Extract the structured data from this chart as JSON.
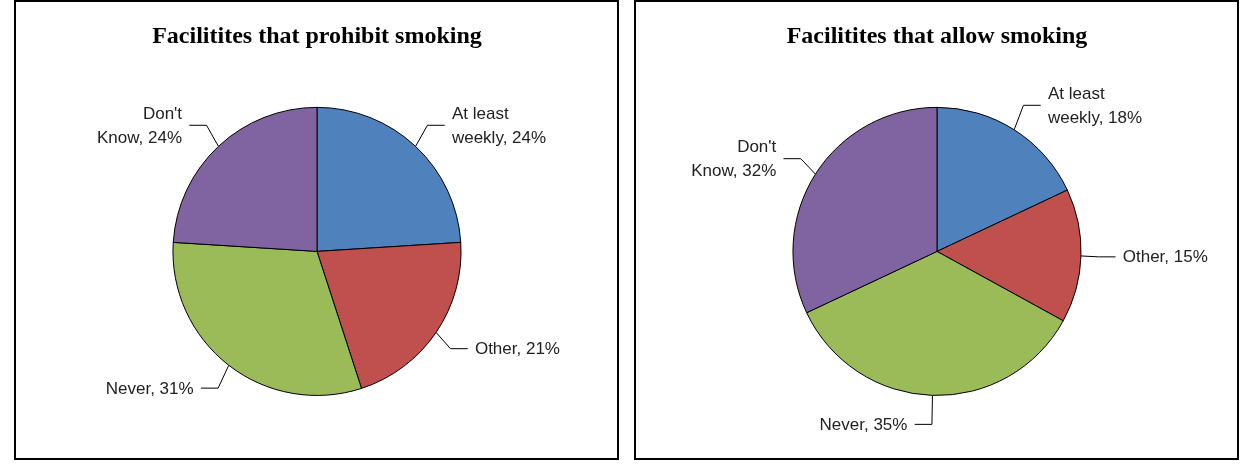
{
  "chart_data": [
    {
      "type": "pie",
      "title": "Facilitites that prohibit smoking",
      "categories": [
        "At least weekly",
        "Other",
        "Never",
        "Don't Know"
      ],
      "values": [
        24,
        21,
        31,
        24
      ],
      "value_labels": [
        "24%",
        "21%",
        "31%",
        "24%"
      ],
      "colors": [
        "#4f81bd",
        "#c0504d",
        "#9bbb59",
        "#8064a2"
      ]
    },
    {
      "type": "pie",
      "title": "Facilitites that allow smoking",
      "categories": [
        "At least weekly",
        "Other",
        "Never",
        "Don't Know"
      ],
      "values": [
        18,
        15,
        35,
        32
      ],
      "value_labels": [
        "18%",
        "15%",
        "35%",
        "32%"
      ],
      "colors": [
        "#4f81bd",
        "#c0504d",
        "#9bbb59",
        "#8064a2"
      ]
    }
  ]
}
